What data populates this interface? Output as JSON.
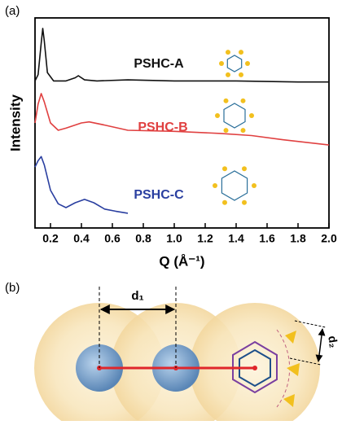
{
  "chart_data": {
    "type": "line",
    "panel_label": "(a)",
    "x_label": "Q (Å⁻¹)",
    "y_label": "Intensity",
    "xlim": [
      0.1,
      2.0
    ],
    "xticks": [
      0.2,
      0.4,
      0.6,
      0.8,
      {
        "value": 1,
        "label": "1.0"
      },
      1.2,
      1.4,
      1.6,
      1.8,
      {
        "value": 2,
        "label": "2.0"
      }
    ],
    "ylim": [
      0,
      10
    ],
    "series": [
      {
        "name": "PSHC-A",
        "color": "#111111",
        "x": [
          0.1,
          0.12,
          0.14,
          0.15,
          0.16,
          0.18,
          0.22,
          0.3,
          0.36,
          0.38,
          0.42,
          0.5,
          0.7,
          1.0,
          1.4,
          1.8,
          2.0
        ],
        "values": [
          7.0,
          7.3,
          8.8,
          9.5,
          8.9,
          7.4,
          7.0,
          7.0,
          7.15,
          7.25,
          7.05,
          7.0,
          7.05,
          7.0,
          7.0,
          6.95,
          6.95
        ]
      },
      {
        "name": "PSHC-B",
        "color": "#e04040",
        "x": [
          0.1,
          0.12,
          0.14,
          0.16,
          0.2,
          0.25,
          0.3,
          0.4,
          0.45,
          0.55,
          0.7,
          1.0,
          1.3,
          1.5,
          1.7,
          2.0
        ],
        "values": [
          5.0,
          5.9,
          6.4,
          6.0,
          5.0,
          4.65,
          4.75,
          5.0,
          5.05,
          4.9,
          4.65,
          4.6,
          4.5,
          4.4,
          4.2,
          3.95
        ]
      },
      {
        "name": "PSHC-C",
        "color": "#2a3fa0",
        "x": [
          0.1,
          0.12,
          0.14,
          0.16,
          0.2,
          0.25,
          0.3,
          0.36,
          0.42,
          0.48,
          0.55,
          0.62,
          0.7
        ],
        "values": [
          2.9,
          3.2,
          3.4,
          3.0,
          1.8,
          1.15,
          0.97,
          1.2,
          1.36,
          1.2,
          0.9,
          0.8,
          0.7
        ]
      }
    ]
  },
  "diagram": {
    "panel_label": "(b)",
    "labels": [
      "d₁",
      "d₂"
    ]
  }
}
